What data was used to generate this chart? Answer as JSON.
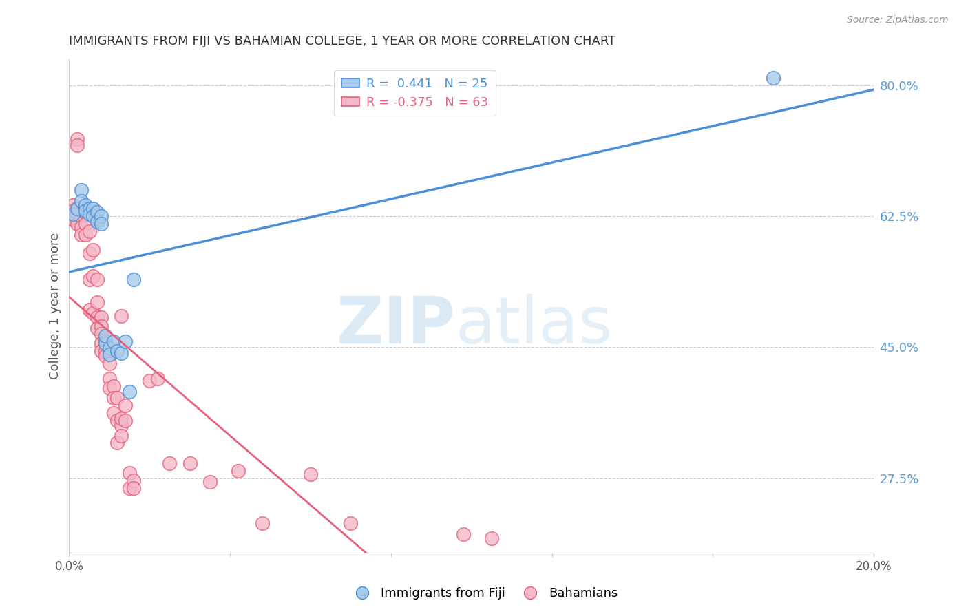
{
  "title": "IMMIGRANTS FROM FIJI VS BAHAMIAN COLLEGE, 1 YEAR OR MORE CORRELATION CHART",
  "source": "Source: ZipAtlas.com",
  "ylabel": "College, 1 year or more",
  "xlim": [
    0.0,
    0.2
  ],
  "ylim": [
    0.175,
    0.835
  ],
  "yticks": [
    0.275,
    0.45,
    0.625,
    0.8
  ],
  "ytick_labels": [
    "27.5%",
    "45.0%",
    "62.5%",
    "80.0%"
  ],
  "xticks": [
    0.0,
    0.04,
    0.08,
    0.12,
    0.16,
    0.2
  ],
  "xtick_labels": [
    "0.0%",
    "",
    "",
    "",
    "",
    "20.0%"
  ],
  "blue_R": 0.441,
  "blue_N": 25,
  "pink_R": -0.375,
  "pink_N": 63,
  "blue_color": "#A8CAEA",
  "pink_color": "#F5B8C8",
  "blue_line_color": "#4A90D9",
  "pink_line_color": "#E8607A",
  "blue_dots_x": [
    0.001,
    0.002,
    0.003,
    0.003,
    0.004,
    0.004,
    0.005,
    0.005,
    0.006,
    0.006,
    0.007,
    0.007,
    0.008,
    0.008,
    0.009,
    0.009,
    0.01,
    0.01,
    0.011,
    0.012,
    0.013,
    0.014,
    0.015,
    0.016,
    0.175
  ],
  "blue_dots_y": [
    0.628,
    0.635,
    0.66,
    0.645,
    0.64,
    0.632,
    0.635,
    0.628,
    0.635,
    0.625,
    0.63,
    0.618,
    0.625,
    0.615,
    0.455,
    0.465,
    0.448,
    0.44,
    0.458,
    0.445,
    0.442,
    0.458,
    0.39,
    0.54,
    0.81
  ],
  "pink_dots_x": [
    0.001,
    0.001,
    0.001,
    0.002,
    0.002,
    0.002,
    0.002,
    0.003,
    0.003,
    0.003,
    0.004,
    0.004,
    0.004,
    0.005,
    0.005,
    0.005,
    0.005,
    0.006,
    0.006,
    0.006,
    0.007,
    0.007,
    0.007,
    0.007,
    0.008,
    0.008,
    0.008,
    0.008,
    0.008,
    0.009,
    0.009,
    0.009,
    0.01,
    0.01,
    0.01,
    0.01,
    0.011,
    0.011,
    0.011,
    0.012,
    0.012,
    0.012,
    0.013,
    0.013,
    0.013,
    0.013,
    0.014,
    0.014,
    0.015,
    0.015,
    0.016,
    0.016,
    0.02,
    0.022,
    0.025,
    0.03,
    0.035,
    0.042,
    0.048,
    0.06,
    0.07,
    0.098,
    0.105
  ],
  "pink_dots_y": [
    0.64,
    0.632,
    0.62,
    0.728,
    0.72,
    0.635,
    0.615,
    0.625,
    0.61,
    0.6,
    0.63,
    0.615,
    0.6,
    0.605,
    0.575,
    0.54,
    0.5,
    0.58,
    0.545,
    0.495,
    0.54,
    0.51,
    0.49,
    0.475,
    0.49,
    0.478,
    0.468,
    0.455,
    0.445,
    0.458,
    0.445,
    0.438,
    0.445,
    0.428,
    0.408,
    0.395,
    0.398,
    0.382,
    0.362,
    0.382,
    0.352,
    0.322,
    0.492,
    0.345,
    0.332,
    0.355,
    0.372,
    0.352,
    0.282,
    0.262,
    0.272,
    0.262,
    0.405,
    0.408,
    0.295,
    0.295,
    0.27,
    0.285,
    0.215,
    0.28,
    0.215,
    0.2,
    0.195
  ]
}
